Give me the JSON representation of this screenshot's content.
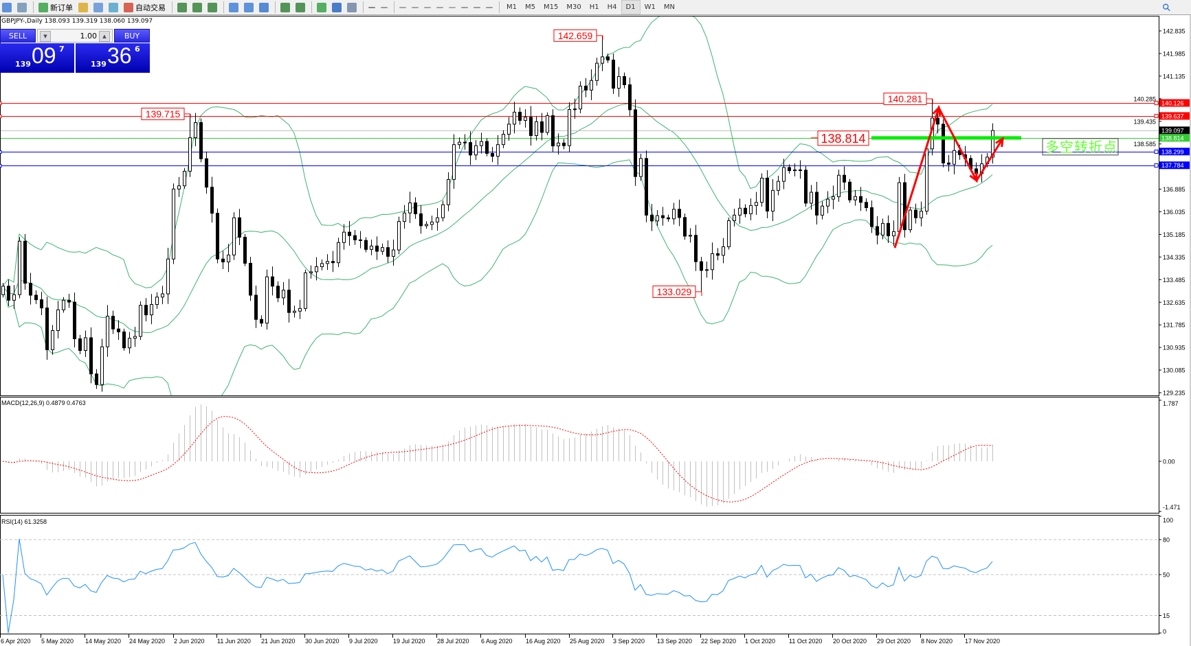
{
  "toolbar": {
    "new_order_label": "新订单",
    "auto_trading_label": "自动交易",
    "icons": [
      "new-chart-icon",
      "profiles-icon",
      "new-order-icon",
      "metaeditor-icon",
      "market-watch-icon",
      "signals-icon",
      "auto-trading-icon",
      "bar-chart-icon",
      "candlestick-icon",
      "line-chart-icon",
      "zoom-in-icon",
      "zoom-out-icon",
      "tile-windows-icon",
      "autoscroll-icon",
      "chart-shift-icon",
      "indicators-icon",
      "periods-icon",
      "templates-icon",
      "cursor-icon",
      "crosshair-icon",
      "vertical-line-icon",
      "horizontal-line-icon",
      "trendline-icon",
      "equidistant-channel-icon",
      "fibonacci-icon",
      "text-icon",
      "text-label-icon",
      "arrows-icon"
    ],
    "timeframes": [
      "M1",
      "M5",
      "M15",
      "M30",
      "H1",
      "H4",
      "D1",
      "W1",
      "MN"
    ],
    "active_timeframe": "D1",
    "search_icon": "search-icon"
  },
  "chart": {
    "title": "GBPJPY-,Daily  138.093 139.319 138.060 139.097"
  },
  "trade_panel": {
    "sell_label": "SELL",
    "buy_label": "BUY",
    "lot": "1.00",
    "sell_price": {
      "big_figure": "139",
      "pips": "09",
      "fraction": "7"
    },
    "buy_price": {
      "big_figure": "139",
      "pips": "36",
      "fraction": "6"
    }
  },
  "chart_data": {
    "type": "candlestick",
    "symbol": "GBPJPY-",
    "timeframe": "Daily",
    "first_open": 132.92,
    "closes": [
      133.24,
      132.71,
      132.92,
      134.93,
      133.35,
      132.9,
      132.73,
      132.42,
      130.85,
      131.57,
      132.35,
      132.71,
      132.64,
      131.26,
      130.82,
      131.3,
      129.94,
      129.54,
      130.96,
      132.11,
      131.63,
      131.52,
      130.92,
      131.28,
      131.35,
      132.52,
      132.16,
      132.55,
      132.83,
      132.95,
      134.26,
      136.89,
      137.01,
      137.56,
      138.82,
      139.39,
      138.03,
      136.96,
      135.98,
      134.26,
      134.15,
      134.41,
      135.81,
      135.08,
      134.1,
      132.9,
      131.99,
      131.85,
      133.59,
      133.24,
      132.8,
      133.09,
      132.25,
      132.3,
      132.4,
      133.74,
      133.78,
      133.97,
      134.09,
      134.17,
      134.12,
      134.88,
      135.27,
      135.14,
      134.98,
      134.96,
      134.62,
      134.75,
      134.55,
      134.69,
      134.36,
      134.6,
      135.67,
      135.99,
      136.37,
      135.96,
      135.51,
      135.56,
      135.65,
      135.81,
      136.3,
      137.25,
      138.56,
      138.65,
      138.64,
      138.17,
      138.52,
      138.68,
      138.23,
      138.12,
      138.56,
      138.95,
      139.33,
      139.78,
      139.47,
      139.59,
      138.9,
      139.42,
      139.02,
      139.65,
      138.51,
      138.62,
      138.52,
      139.88,
      139.9,
      140.76,
      140.61,
      140.97,
      141.62,
      141.86,
      141.74,
      140.68,
      141.12,
      140.81,
      139.87,
      137.36,
      138.04,
      135.91,
      135.69,
      135.89,
      135.81,
      135.77,
      136.13,
      135.82,
      135.12,
      135.15,
      134.16,
      133.83,
      133.86,
      134.46,
      134.4,
      134.72,
      135.7,
      135.91,
      136.17,
      135.96,
      136.27,
      136.39,
      137.3,
      136.06,
      136.84,
      137.18,
      137.7,
      137.58,
      137.61,
      137.6,
      136.36,
      136.77,
      135.91,
      136.25,
      136.51,
      136.6,
      137.41,
      137.15,
      136.48,
      136.61,
      136.39,
      136.19,
      135.48,
      135.16,
      135.6,
      135.13,
      135.29,
      137.13,
      135.36,
      136.1,
      135.81,
      136.06,
      138.4,
      139.56,
      139.33,
      137.87,
      137.82,
      138.34,
      138.18,
      138.04,
      137.65,
      137.47,
      137.84,
      138.09,
      139.09
    ],
    "price_axis": {
      "range": [
        129.235,
        142.835
      ],
      "ticks": [
        "142.835",
        "141.985",
        "141.135",
        "140.285",
        "139.435",
        "138.585",
        "136.885",
        "136.035",
        "135.185",
        "134.335",
        "133.485",
        "132.635",
        "131.785",
        "130.935",
        "130.085",
        "129.235"
      ]
    },
    "date_labels": [
      "6 Apr 2020",
      "5 May 2020",
      "14 May 2020",
      "24 May 2020",
      "2 Jun 2020",
      "11 Jun 2020",
      "21 Jun 2020",
      "30 Jun 2020",
      "9 Jul 2020",
      "19 Jul 2020",
      "28 Jul 2020",
      "6 Aug 2020",
      "16 Aug 2020",
      "25 Aug 2020",
      "3 Sep 2020",
      "13 Sep 2020",
      "22 Sep 2020",
      "1 Oct 2020",
      "11 Oct 2020",
      "20 Oct 2020",
      "29 Oct 2020",
      "8 Nov 2020",
      "17 Nov 2020"
    ],
    "bollinger": {
      "period": 20,
      "deviation": 2,
      "color": "#3cb371"
    },
    "horizontal_lines": [
      {
        "price": 140.126,
        "label": "140.126",
        "color": "#ff0000"
      },
      {
        "price": 139.637,
        "label": "139.637",
        "color": "#ff0000"
      },
      {
        "price": 139.097,
        "label": "139.097",
        "color": "#c0c0c0",
        "label_bg": "#000000"
      },
      {
        "price": 138.814,
        "label": "138.814",
        "color": "#33cc33"
      },
      {
        "price": 138.299,
        "label": "138.299",
        "color": "#0000ff"
      },
      {
        "price": 137.784,
        "label": "137.784",
        "color": "#0000ff"
      }
    ],
    "price_labels": [
      {
        "text": "142.659",
        "price": 142.659,
        "bar_index": 109
      },
      {
        "text": "139.715",
        "price": 139.715,
        "bar_index": 34
      },
      {
        "text": "133.029",
        "price": 133.029,
        "bar_index": 127
      },
      {
        "text": "140.281",
        "price": 140.281,
        "bar_index": 169
      }
    ],
    "pivot_label": {
      "text": "138.814",
      "price": 138.814
    },
    "annotation_text": "多空转折点",
    "zigzag_arrow_color": "#ff0000",
    "macd": {
      "label": "MACD(12,26,9) 0.4879 0.4763",
      "fast": 12,
      "slow": 26,
      "signal": 9,
      "range": [
        -1.471,
        1.787
      ],
      "ticks": [
        "1.787",
        "0.00",
        "-1.471"
      ],
      "histogram_color": "#c0c0c0",
      "signal_color": "#ff0000"
    },
    "rsi": {
      "label": "RSI(14) 61.3258",
      "period": 14,
      "levels": [
        80,
        50,
        15
      ],
      "ticks": [
        "100",
        "80",
        "50",
        "15",
        "0"
      ],
      "color": "#1e90ff"
    }
  }
}
